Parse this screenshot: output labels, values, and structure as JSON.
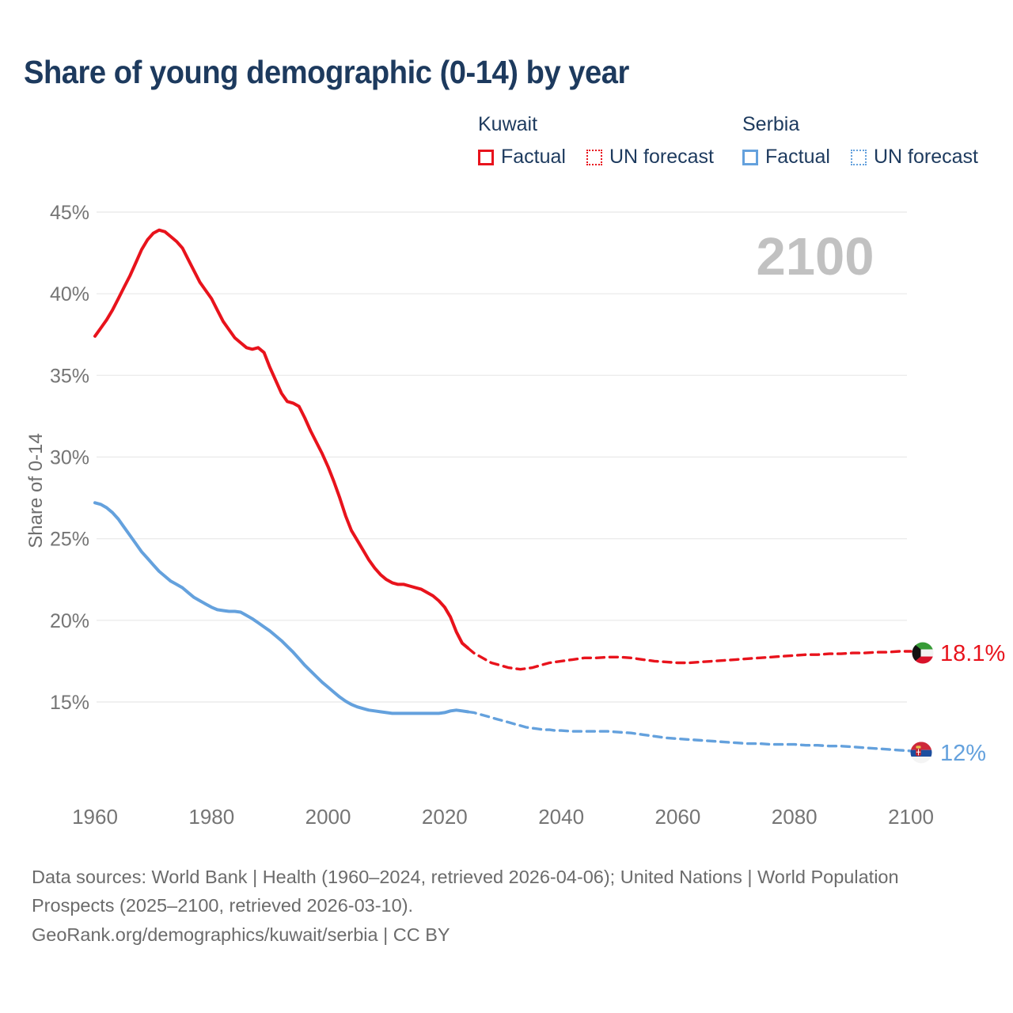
{
  "title": "Share of young demographic (0-14) by year",
  "watermark": "2100",
  "colors": {
    "kuwait": "#e8131c",
    "serbia": "#64a1dd",
    "title_text": "#1d3a5e",
    "axis_text": "#757575",
    "gridline": "#ececec",
    "watermark_text": "#c1c1c1",
    "footer_text": "#6b6b6b"
  },
  "legend": {
    "groups": [
      {
        "label": "Kuwait",
        "color": "#e8131c",
        "items": [
          {
            "label": "Factual",
            "style": "solid"
          },
          {
            "label": "UN forecast",
            "style": "dashed"
          }
        ]
      },
      {
        "label": "Serbia",
        "color": "#64a1dd",
        "items": [
          {
            "label": "Factual",
            "style": "solid"
          },
          {
            "label": "UN forecast",
            "style": "dashed"
          }
        ]
      }
    ]
  },
  "chart_data": {
    "type": "line",
    "title": "Share of young demographic (0-14) by year",
    "xlabel": "",
    "ylabel": "Share of 0-14",
    "grid": "horizontal-only",
    "legend_position": "top-right",
    "xlim": [
      1955,
      2105
    ],
    "ylim": [
      11,
      46
    ],
    "x_ticks": [
      1960,
      1980,
      2000,
      2020,
      2040,
      2060,
      2080,
      2100
    ],
    "y_ticks": [
      45,
      40,
      35,
      30,
      25,
      20,
      15
    ],
    "y_tick_suffix": "%",
    "series": [
      {
        "name": "Kuwait Factual",
        "color": "#e8131c",
        "style": "solid",
        "points": [
          [
            1960,
            37.4
          ],
          [
            1961,
            37.9
          ],
          [
            1962,
            38.4
          ],
          [
            1963,
            39.0
          ],
          [
            1964,
            39.7
          ],
          [
            1965,
            40.4
          ],
          [
            1966,
            41.1
          ],
          [
            1967,
            41.9
          ],
          [
            1968,
            42.7
          ],
          [
            1969,
            43.3
          ],
          [
            1970,
            43.7
          ],
          [
            1971,
            43.9
          ],
          [
            1972,
            43.8
          ],
          [
            1973,
            43.5
          ],
          [
            1974,
            43.2
          ],
          [
            1975,
            42.8
          ],
          [
            1976,
            42.1
          ],
          [
            1977,
            41.4
          ],
          [
            1978,
            40.7
          ],
          [
            1979,
            40.2
          ],
          [
            1980,
            39.7
          ],
          [
            1981,
            39.0
          ],
          [
            1982,
            38.3
          ],
          [
            1983,
            37.8
          ],
          [
            1984,
            37.3
          ],
          [
            1985,
            37.0
          ],
          [
            1986,
            36.7
          ],
          [
            1987,
            36.6
          ],
          [
            1988,
            36.7
          ],
          [
            1989,
            36.4
          ],
          [
            1990,
            35.5
          ],
          [
            1991,
            34.7
          ],
          [
            1992,
            33.9
          ],
          [
            1993,
            33.4
          ],
          [
            1994,
            33.3
          ],
          [
            1995,
            33.1
          ],
          [
            1996,
            32.4
          ],
          [
            1997,
            31.6
          ],
          [
            1998,
            30.9
          ],
          [
            1999,
            30.2
          ],
          [
            2000,
            29.4
          ],
          [
            2001,
            28.5
          ],
          [
            2002,
            27.5
          ],
          [
            2003,
            26.4
          ],
          [
            2004,
            25.5
          ],
          [
            2005,
            24.9
          ],
          [
            2006,
            24.3
          ],
          [
            2007,
            23.7
          ],
          [
            2008,
            23.2
          ],
          [
            2009,
            22.8
          ],
          [
            2010,
            22.5
          ],
          [
            2011,
            22.3
          ],
          [
            2012,
            22.2
          ],
          [
            2013,
            22.2
          ],
          [
            2014,
            22.1
          ],
          [
            2015,
            22.0
          ],
          [
            2016,
            21.9
          ],
          [
            2017,
            21.7
          ],
          [
            2018,
            21.5
          ],
          [
            2019,
            21.2
          ],
          [
            2020,
            20.8
          ],
          [
            2021,
            20.2
          ],
          [
            2022,
            19.3
          ],
          [
            2023,
            18.6
          ],
          [
            2024,
            18.3
          ]
        ]
      },
      {
        "name": "Kuwait UN forecast",
        "color": "#e8131c",
        "style": "dashed",
        "points": [
          [
            2024,
            18.3
          ],
          [
            2025,
            18.0
          ],
          [
            2026,
            17.8
          ],
          [
            2027,
            17.6
          ],
          [
            2028,
            17.4
          ],
          [
            2029,
            17.3
          ],
          [
            2030,
            17.2
          ],
          [
            2031,
            17.1
          ],
          [
            2032,
            17.05
          ],
          [
            2033,
            17.0
          ],
          [
            2034,
            17.05
          ],
          [
            2035,
            17.1
          ],
          [
            2036,
            17.2
          ],
          [
            2037,
            17.3
          ],
          [
            2038,
            17.4
          ],
          [
            2040,
            17.5
          ],
          [
            2042,
            17.6
          ],
          [
            2044,
            17.7
          ],
          [
            2046,
            17.7
          ],
          [
            2048,
            17.75
          ],
          [
            2050,
            17.75
          ],
          [
            2052,
            17.7
          ],
          [
            2054,
            17.6
          ],
          [
            2056,
            17.5
          ],
          [
            2058,
            17.45
          ],
          [
            2060,
            17.4
          ],
          [
            2062,
            17.4
          ],
          [
            2064,
            17.45
          ],
          [
            2066,
            17.5
          ],
          [
            2068,
            17.55
          ],
          [
            2070,
            17.6
          ],
          [
            2072,
            17.65
          ],
          [
            2074,
            17.7
          ],
          [
            2076,
            17.75
          ],
          [
            2078,
            17.8
          ],
          [
            2080,
            17.85
          ],
          [
            2082,
            17.9
          ],
          [
            2084,
            17.9
          ],
          [
            2086,
            17.95
          ],
          [
            2088,
            17.95
          ],
          [
            2090,
            18.0
          ],
          [
            2092,
            18.0
          ],
          [
            2094,
            18.05
          ],
          [
            2096,
            18.05
          ],
          [
            2098,
            18.1
          ],
          [
            2100,
            18.1
          ]
        ]
      },
      {
        "name": "Serbia Factual",
        "color": "#64a1dd",
        "style": "solid",
        "points": [
          [
            1960,
            27.2
          ],
          [
            1961,
            27.1
          ],
          [
            1962,
            26.9
          ],
          [
            1963,
            26.6
          ],
          [
            1964,
            26.2
          ],
          [
            1965,
            25.7
          ],
          [
            1966,
            25.2
          ],
          [
            1967,
            24.7
          ],
          [
            1968,
            24.2
          ],
          [
            1969,
            23.8
          ],
          [
            1970,
            23.4
          ],
          [
            1971,
            23.0
          ],
          [
            1972,
            22.7
          ],
          [
            1973,
            22.4
          ],
          [
            1974,
            22.2
          ],
          [
            1975,
            22.0
          ],
          [
            1976,
            21.7
          ],
          [
            1977,
            21.4
          ],
          [
            1978,
            21.2
          ],
          [
            1979,
            21.0
          ],
          [
            1980,
            20.8
          ],
          [
            1981,
            20.65
          ],
          [
            1982,
            20.6
          ],
          [
            1983,
            20.55
          ],
          [
            1984,
            20.55
          ],
          [
            1985,
            20.5
          ],
          [
            1986,
            20.3
          ],
          [
            1987,
            20.1
          ],
          [
            1988,
            19.85
          ],
          [
            1989,
            19.6
          ],
          [
            1990,
            19.35
          ],
          [
            1991,
            19.05
          ],
          [
            1992,
            18.75
          ],
          [
            1993,
            18.4
          ],
          [
            1994,
            18.05
          ],
          [
            1995,
            17.65
          ],
          [
            1996,
            17.25
          ],
          [
            1997,
            16.9
          ],
          [
            1998,
            16.55
          ],
          [
            1999,
            16.2
          ],
          [
            2000,
            15.9
          ],
          [
            2001,
            15.6
          ],
          [
            2002,
            15.3
          ],
          [
            2003,
            15.05
          ],
          [
            2004,
            14.85
          ],
          [
            2005,
            14.7
          ],
          [
            2006,
            14.6
          ],
          [
            2007,
            14.5
          ],
          [
            2008,
            14.45
          ],
          [
            2009,
            14.4
          ],
          [
            2010,
            14.35
          ],
          [
            2011,
            14.3
          ],
          [
            2012,
            14.3
          ],
          [
            2013,
            14.3
          ],
          [
            2014,
            14.3
          ],
          [
            2015,
            14.3
          ],
          [
            2016,
            14.3
          ],
          [
            2017,
            14.3
          ],
          [
            2018,
            14.3
          ],
          [
            2019,
            14.3
          ],
          [
            2020,
            14.35
          ],
          [
            2021,
            14.45
          ],
          [
            2022,
            14.5
          ],
          [
            2023,
            14.45
          ],
          [
            2024,
            14.4
          ]
        ]
      },
      {
        "name": "Serbia UN forecast",
        "color": "#64a1dd",
        "style": "dashed",
        "points": [
          [
            2024,
            14.4
          ],
          [
            2025,
            14.35
          ],
          [
            2026,
            14.25
          ],
          [
            2027,
            14.15
          ],
          [
            2028,
            14.05
          ],
          [
            2029,
            13.95
          ],
          [
            2030,
            13.85
          ],
          [
            2031,
            13.75
          ],
          [
            2032,
            13.65
          ],
          [
            2033,
            13.55
          ],
          [
            2034,
            13.45
          ],
          [
            2035,
            13.4
          ],
          [
            2036,
            13.35
          ],
          [
            2037,
            13.3
          ],
          [
            2038,
            13.3
          ],
          [
            2039,
            13.25
          ],
          [
            2040,
            13.25
          ],
          [
            2042,
            13.2
          ],
          [
            2044,
            13.2
          ],
          [
            2046,
            13.2
          ],
          [
            2048,
            13.2
          ],
          [
            2050,
            13.15
          ],
          [
            2052,
            13.1
          ],
          [
            2054,
            13.0
          ],
          [
            2056,
            12.9
          ],
          [
            2058,
            12.8
          ],
          [
            2060,
            12.75
          ],
          [
            2062,
            12.7
          ],
          [
            2064,
            12.65
          ],
          [
            2066,
            12.6
          ],
          [
            2068,
            12.55
          ],
          [
            2070,
            12.5
          ],
          [
            2072,
            12.45
          ],
          [
            2074,
            12.45
          ],
          [
            2076,
            12.4
          ],
          [
            2078,
            12.4
          ],
          [
            2080,
            12.4
          ],
          [
            2082,
            12.35
          ],
          [
            2084,
            12.35
          ],
          [
            2086,
            12.3
          ],
          [
            2088,
            12.3
          ],
          [
            2090,
            12.25
          ],
          [
            2092,
            12.2
          ],
          [
            2094,
            12.15
          ],
          [
            2096,
            12.1
          ],
          [
            2098,
            12.05
          ],
          [
            2100,
            12.0
          ]
        ]
      }
    ],
    "end_labels": [
      {
        "text": "18.1%",
        "value": 18.1,
        "year": 2100,
        "color": "#e8131c",
        "flag": "kuwait"
      },
      {
        "text": "12%",
        "value": 12.0,
        "year": 2100,
        "color": "#64a1dd",
        "flag": "serbia"
      }
    ]
  },
  "footer": {
    "sources": "Data sources: World Bank | Health (1960–2024, retrieved 2026-04-06); United Nations | World Population Prospects (2025–2100, retrieved 2026-03-10).",
    "attribution": "GeoRank.org/demographics/kuwait/serbia | CC BY"
  }
}
